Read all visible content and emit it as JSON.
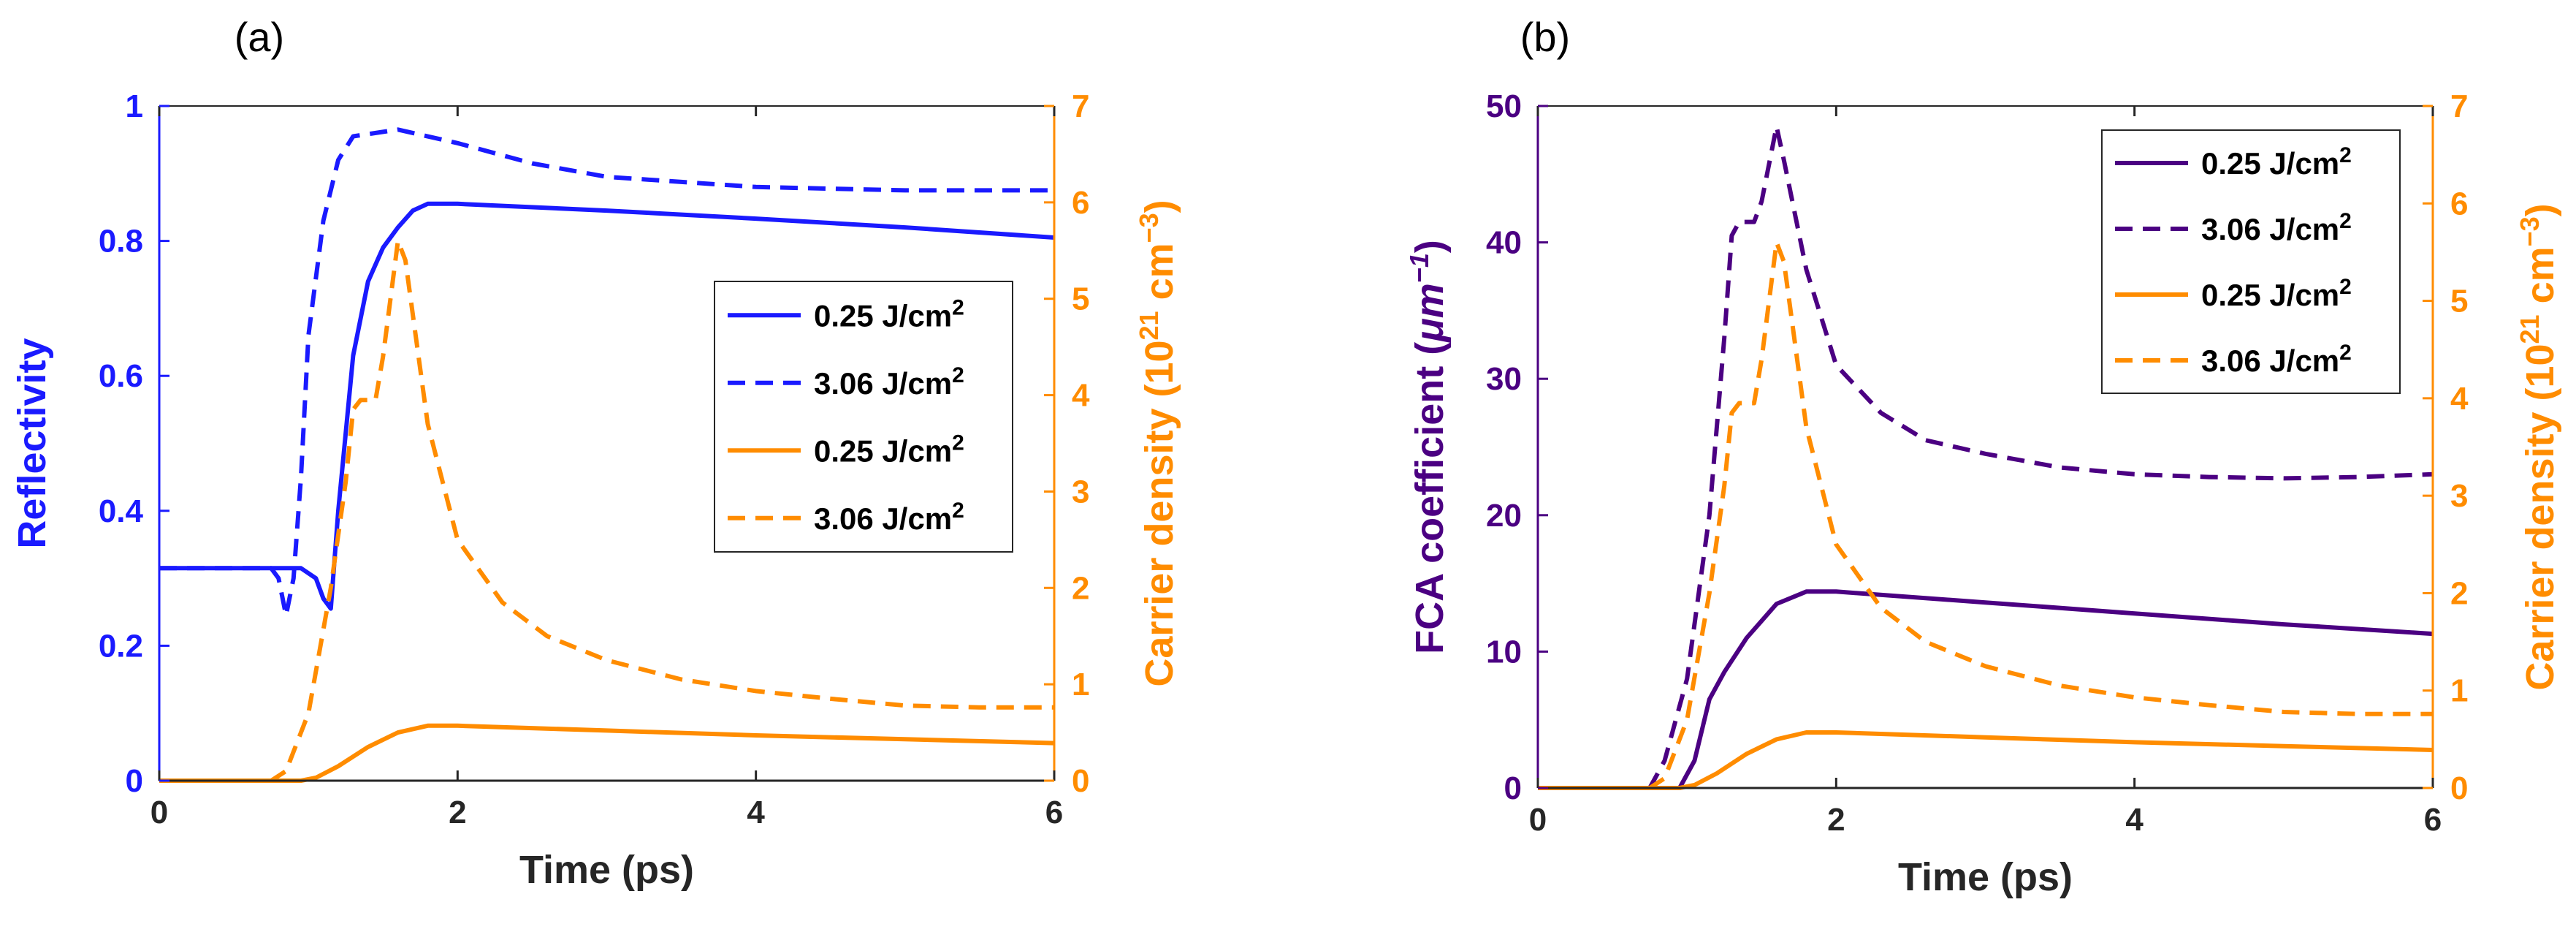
{
  "colors": {
    "blue": "#1a1aff",
    "orange": "#ff8c00",
    "purple": "#4b0082",
    "axis": "#262626"
  },
  "chart_data": [
    {
      "panel": "(a)",
      "type": "line",
      "xlabel": "Time (ps)",
      "xlim": [
        0,
        6
      ],
      "xticks": [
        0,
        2,
        4,
        6
      ],
      "xtick_labels": [
        "0",
        "2",
        "4",
        "6"
      ],
      "ylabel_left": "Reflectivity",
      "ylim_left": [
        0,
        1
      ],
      "yticks_left": [
        0,
        0.2,
        0.4,
        0.6,
        0.8,
        1
      ],
      "ytick_labels_left": [
        "0",
        "0.2",
        "0.4",
        "0.6",
        "0.8",
        "1"
      ],
      "ylabel_right": {
        "main": "Carrier density (10",
        "sup1": "21",
        "mid": " cm",
        "sup2": "−3",
        "end": ")"
      },
      "ylim_right": [
        0,
        7
      ],
      "yticks_right": [
        0,
        1,
        2,
        3,
        4,
        5,
        6,
        7
      ],
      "ytick_labels_right": [
        "0",
        "1",
        "2",
        "3",
        "4",
        "5",
        "6",
        "7"
      ],
      "legend_position": "center-right",
      "series": [
        {
          "name": "0.25 J/cm",
          "sup": "2",
          "axis": "left",
          "color": "#1a1aff",
          "dash": "solid",
          "x": [
            0,
            0.95,
            1.05,
            1.1,
            1.15,
            1.2,
            1.3,
            1.4,
            1.5,
            1.6,
            1.7,
            1.8,
            2,
            3,
            4,
            5,
            6
          ],
          "y": [
            0.315,
            0.315,
            0.3,
            0.27,
            0.255,
            0.4,
            0.63,
            0.74,
            0.79,
            0.82,
            0.845,
            0.855,
            0.855,
            0.845,
            0.833,
            0.82,
            0.805
          ]
        },
        {
          "name": "3.06 J/cm",
          "sup": "2",
          "axis": "left",
          "color": "#1a1aff",
          "dash": "dashed",
          "x": [
            0,
            0.75,
            0.8,
            0.85,
            0.9,
            0.95,
            1.0,
            1.1,
            1.2,
            1.3,
            1.6,
            2,
            2.5,
            3,
            4,
            5,
            6
          ],
          "y": [
            0.315,
            0.315,
            0.3,
            0.245,
            0.3,
            0.45,
            0.66,
            0.83,
            0.92,
            0.955,
            0.965,
            0.945,
            0.915,
            0.895,
            0.88,
            0.875,
            0.875
          ]
        },
        {
          "name": "0.25 J/cm",
          "sup": "2",
          "axis": "right",
          "color": "#ff8c00",
          "dash": "solid",
          "x": [
            0,
            0.95,
            1.05,
            1.2,
            1.4,
            1.6,
            1.8,
            2,
            3,
            4,
            5,
            6
          ],
          "y": [
            0,
            0,
            0.03,
            0.15,
            0.35,
            0.5,
            0.57,
            0.57,
            0.52,
            0.47,
            0.43,
            0.39
          ]
        },
        {
          "name": "3.06 J/cm",
          "sup": "2",
          "axis": "right",
          "color": "#ff8c00",
          "dash": "dashed",
          "x": [
            0,
            0.75,
            0.85,
            1.0,
            1.15,
            1.25,
            1.3,
            1.35,
            1.45,
            1.5,
            1.6,
            1.65,
            1.8,
            2,
            2.3,
            2.6,
            3,
            3.5,
            4,
            4.5,
            5,
            5.5,
            6
          ],
          "y": [
            0,
            0,
            0.1,
            0.7,
            2.0,
            3.1,
            3.85,
            3.95,
            3.95,
            4.4,
            5.6,
            5.4,
            3.7,
            2.5,
            1.85,
            1.5,
            1.25,
            1.05,
            0.93,
            0.85,
            0.78,
            0.76,
            0.76
          ]
        }
      ]
    },
    {
      "panel": "(b)",
      "type": "line",
      "xlabel": "Time (ps)",
      "xlim": [
        0,
        6
      ],
      "xticks": [
        0,
        2,
        4,
        6
      ],
      "xtick_labels": [
        "0",
        "2",
        "4",
        "6"
      ],
      "ylabel_left": {
        "main": "FCA coefficient (",
        "mu": "μ",
        "unit": "m",
        "sup": "−1",
        "end": ")"
      },
      "ylim_left": [
        0,
        50
      ],
      "yticks_left": [
        0,
        10,
        20,
        30,
        40,
        50
      ],
      "ytick_labels_left": [
        "0",
        "10",
        "20",
        "30",
        "40",
        "50"
      ],
      "ylabel_right": {
        "main": "Carrier density (10",
        "sup1": "21",
        "mid": " cm",
        "sup2": "−3",
        "end": ")"
      },
      "ylim_right": [
        0,
        7
      ],
      "yticks_right": [
        0,
        1,
        2,
        3,
        4,
        5,
        6,
        7
      ],
      "ytick_labels_right": [
        "0",
        "1",
        "2",
        "3",
        "4",
        "5",
        "6",
        "7"
      ],
      "legend_position": "top-right",
      "series": [
        {
          "name": "0.25 J/cm",
          "sup": "2",
          "axis": "left",
          "color": "#4b0082",
          "dash": "solid",
          "x": [
            0,
            0.95,
            1.05,
            1.15,
            1.25,
            1.4,
            1.6,
            1.8,
            2,
            3,
            4,
            5,
            6
          ],
          "y": [
            0,
            0,
            2.0,
            6.5,
            8.5,
            11.0,
            13.5,
            14.4,
            14.4,
            13.6,
            12.8,
            12.0,
            11.3
          ]
        },
        {
          "name": "3.06 J/cm",
          "sup": "2",
          "axis": "left",
          "color": "#4b0082",
          "dash": "dashed",
          "x": [
            0,
            0.75,
            0.85,
            1.0,
            1.15,
            1.25,
            1.3,
            1.35,
            1.45,
            1.5,
            1.6,
            1.65,
            1.8,
            2,
            2.3,
            2.6,
            3,
            3.5,
            4,
            4.5,
            5,
            5.5,
            6
          ],
          "y": [
            0,
            0,
            2.0,
            8.0,
            20.0,
            33.0,
            40.5,
            41.5,
            41.5,
            43.0,
            48.5,
            46.0,
            38.0,
            31.0,
            27.5,
            25.5,
            24.5,
            23.5,
            23.0,
            22.8,
            22.7,
            22.8,
            23.0
          ]
        },
        {
          "name": "0.25 J/cm",
          "sup": "2",
          "axis": "right",
          "color": "#ff8c00",
          "dash": "solid",
          "x": [
            0,
            0.95,
            1.05,
            1.2,
            1.4,
            1.6,
            1.8,
            2,
            3,
            4,
            5,
            6
          ],
          "y": [
            0,
            0,
            0.03,
            0.15,
            0.35,
            0.5,
            0.57,
            0.57,
            0.52,
            0.47,
            0.43,
            0.39
          ]
        },
        {
          "name": "3.06 J/cm",
          "sup": "2",
          "axis": "right",
          "color": "#ff8c00",
          "dash": "dashed",
          "x": [
            0,
            0.75,
            0.85,
            1.0,
            1.15,
            1.25,
            1.3,
            1.35,
            1.45,
            1.5,
            1.6,
            1.65,
            1.8,
            2,
            2.3,
            2.6,
            3,
            3.5,
            4,
            4.5,
            5,
            5.5,
            6
          ],
          "y": [
            0,
            0,
            0.1,
            0.7,
            2.0,
            3.1,
            3.85,
            3.95,
            3.95,
            4.4,
            5.6,
            5.4,
            3.7,
            2.5,
            1.85,
            1.5,
            1.25,
            1.05,
            0.93,
            0.85,
            0.78,
            0.76,
            0.76
          ]
        }
      ]
    }
  ]
}
